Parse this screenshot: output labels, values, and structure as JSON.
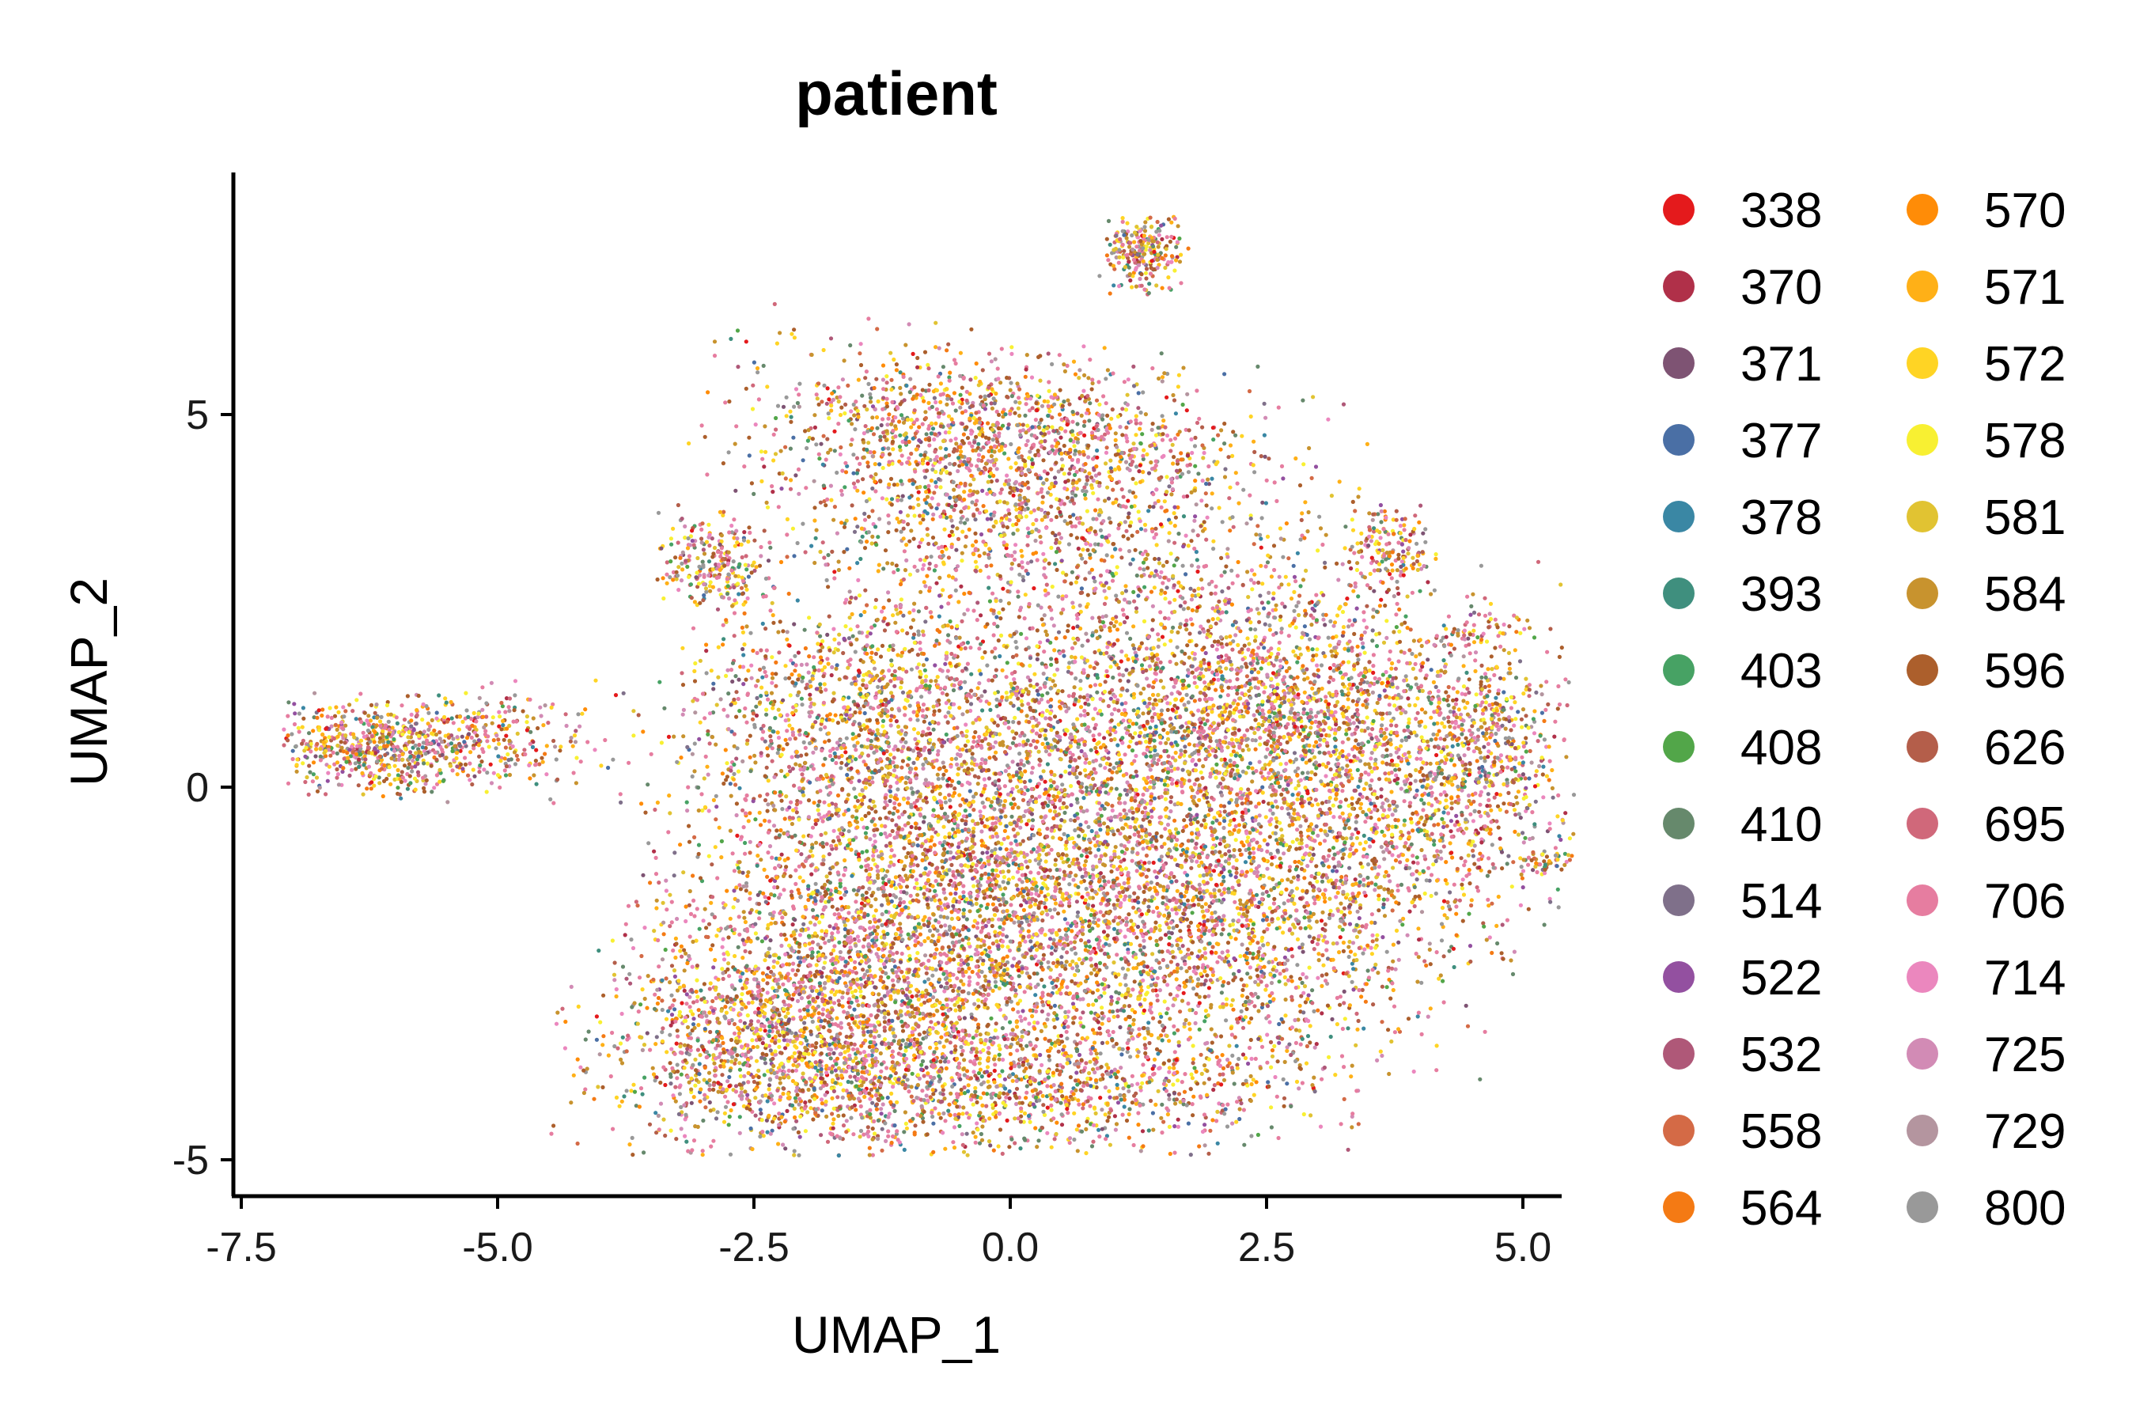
{
  "chart_data": {
    "type": "scatter",
    "title": "patient",
    "xlabel": "UMAP_1",
    "ylabel": "UMAP_2",
    "xlim": [
      -7.6,
      6.1
    ],
    "ylim": [
      -5.6,
      8.4
    ],
    "x_ticks": [
      -7.5,
      -5.0,
      -2.5,
      0.0,
      2.5,
      5.0
    ],
    "x_tick_labels": [
      "-7.5",
      "-5.0",
      "-2.5",
      "0.0",
      "2.5",
      "5.0"
    ],
    "y_ticks": [
      -5,
      0,
      5
    ],
    "y_tick_labels": [
      "-5",
      "0",
      "5"
    ],
    "grid": false,
    "legend_position": "right",
    "legend_columns": 2,
    "series": [
      {
        "name": "338",
        "color": "#E41A1C"
      },
      {
        "name": "370",
        "color": "#B03049"
      },
      {
        "name": "371",
        "color": "#7E5373"
      },
      {
        "name": "377",
        "color": "#4A6FA5"
      },
      {
        "name": "378",
        "color": "#3A87A4"
      },
      {
        "name": "393",
        "color": "#3F8F7E"
      },
      {
        "name": "403",
        "color": "#47A264"
      },
      {
        "name": "408",
        "color": "#52A649"
      },
      {
        "name": "410",
        "color": "#66896C"
      },
      {
        "name": "514",
        "color": "#7F708A"
      },
      {
        "name": "522",
        "color": "#9350A0"
      },
      {
        "name": "532",
        "color": "#AF5878"
      },
      {
        "name": "558",
        "color": "#D46A46"
      },
      {
        "name": "564",
        "color": "#F47A14"
      },
      {
        "name": "570",
        "color": "#FF8C07"
      },
      {
        "name": "571",
        "color": "#FFB017"
      },
      {
        "name": "572",
        "color": "#FFD424"
      },
      {
        "name": "578",
        "color": "#F8F032"
      },
      {
        "name": "581",
        "color": "#E1C332"
      },
      {
        "name": "584",
        "color": "#C8932E"
      },
      {
        "name": "596",
        "color": "#AC5F2C"
      },
      {
        "name": "626",
        "color": "#B45E4A"
      },
      {
        "name": "695",
        "color": "#D0687A"
      },
      {
        "name": "706",
        "color": "#E67DA0"
      },
      {
        "name": "714",
        "color": "#EB87BE"
      },
      {
        "name": "725",
        "color": "#D28BB5"
      },
      {
        "name": "729",
        "color": "#B4959F"
      },
      {
        "name": "800",
        "color": "#999999"
      }
    ]
  }
}
